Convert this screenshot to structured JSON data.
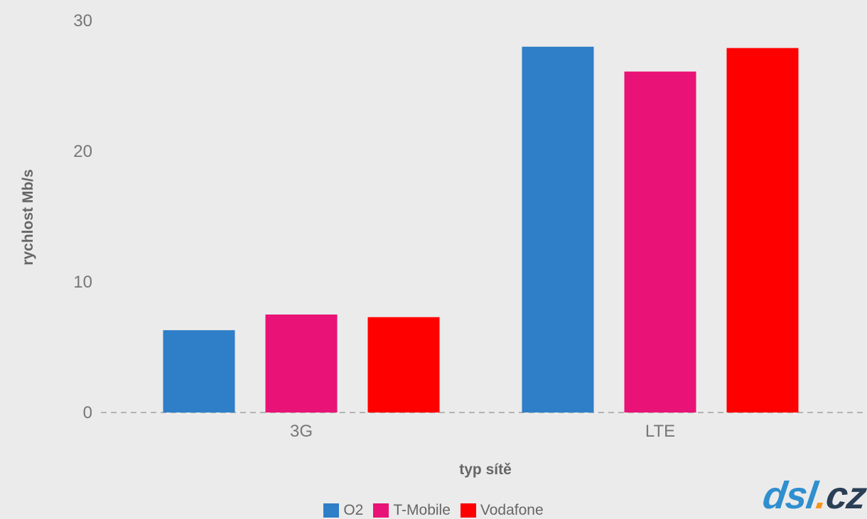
{
  "chart_data": {
    "type": "bar",
    "categories": [
      "3G",
      "LTE"
    ],
    "series": [
      {
        "name": "O2",
        "color": "#2f7ec8",
        "values": [
          6.3,
          28.0
        ]
      },
      {
        "name": "T-Mobile",
        "color": "#e91276",
        "values": [
          7.5,
          26.1
        ]
      },
      {
        "name": "Vodafone",
        "color": "#fe0000",
        "values": [
          7.3,
          27.9
        ]
      }
    ],
    "xlabel": "typ sítě",
    "ylabel": "rychlost Mb/s",
    "ylim": [
      0,
      30
    ],
    "yticks": [
      0,
      10,
      20,
      30
    ],
    "grid": false,
    "zero_line": "dashed",
    "legend_position": "bottom"
  },
  "logo": {
    "part1": "dsl",
    "dot": ".",
    "part2": "cz"
  }
}
